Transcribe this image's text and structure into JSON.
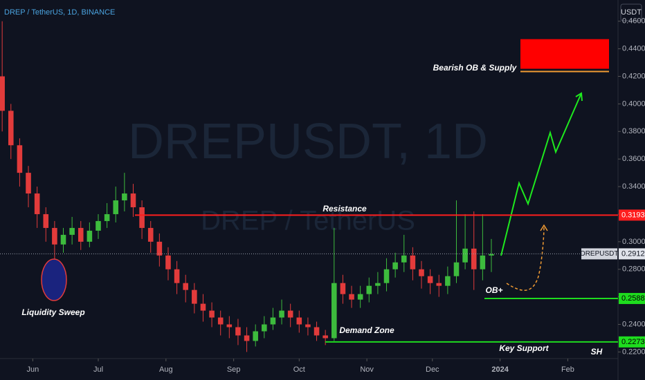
{
  "chart_data": {
    "type": "candlestick",
    "title": "DREP / TetherUS, 1D, BINANCE",
    "watermark": "DREPUSDT, 1D",
    "watermark_sub": "DREP  /  TetherUS",
    "currency": "USDT",
    "symbol": "DREPUSDT",
    "up_color": "#3dbb3d",
    "down_color": "#e23b3b",
    "x": [
      -14,
      -10,
      -6,
      -2,
      2,
      6,
      10,
      14,
      18,
      22,
      26,
      30,
      34,
      38,
      42,
      46,
      50,
      54,
      58,
      62,
      66,
      70,
      74,
      78,
      82,
      86,
      90,
      94,
      98,
      102,
      106,
      110,
      114,
      118,
      122,
      126,
      130,
      134,
      138,
      142,
      146,
      150,
      154,
      158,
      162,
      166,
      170,
      174,
      178,
      182,
      186,
      190,
      194,
      198,
      202,
      206,
      210
    ],
    "open": [
      0.42,
      0.395,
      0.37,
      0.35,
      0.335,
      0.32,
      0.31,
      0.298,
      0.305,
      0.31,
      0.3,
      0.308,
      0.315,
      0.32,
      0.33,
      0.335,
      0.325,
      0.31,
      0.3,
      0.29,
      0.28,
      0.27,
      0.265,
      0.255,
      0.25,
      0.245,
      0.24,
      0.238,
      0.232,
      0.228,
      0.235,
      0.24,
      0.245,
      0.25,
      0.245,
      0.24,
      0.238,
      0.232,
      0.23,
      0.27,
      0.262,
      0.258,
      0.262,
      0.268,
      0.27,
      0.28,
      0.285,
      0.29,
      0.28,
      0.275,
      0.27,
      0.268,
      0.275,
      0.285,
      0.295,
      0.28,
      0.29
    ],
    "high": [
      0.46,
      0.4,
      0.375,
      0.355,
      0.34,
      0.325,
      0.315,
      0.31,
      0.318,
      0.315,
      0.314,
      0.32,
      0.328,
      0.34,
      0.35,
      0.342,
      0.33,
      0.315,
      0.306,
      0.296,
      0.286,
      0.276,
      0.27,
      0.262,
      0.256,
      0.25,
      0.246,
      0.244,
      0.238,
      0.24,
      0.246,
      0.252,
      0.258,
      0.255,
      0.25,
      0.245,
      0.242,
      0.236,
      0.31,
      0.276,
      0.268,
      0.268,
      0.274,
      0.278,
      0.288,
      0.292,
      0.305,
      0.296,
      0.286,
      0.28,
      0.276,
      0.282,
      0.33,
      0.32,
      0.322,
      0.32,
      0.302
    ],
    "low": [
      0.38,
      0.36,
      0.34,
      0.325,
      0.31,
      0.3,
      0.285,
      0.292,
      0.298,
      0.294,
      0.296,
      0.302,
      0.31,
      0.314,
      0.322,
      0.318,
      0.302,
      0.292,
      0.282,
      0.272,
      0.262,
      0.256,
      0.248,
      0.242,
      0.238,
      0.232,
      0.23,
      0.225,
      0.22,
      0.224,
      0.23,
      0.236,
      0.24,
      0.238,
      0.234,
      0.232,
      0.228,
      0.225,
      0.228,
      0.255,
      0.252,
      0.252,
      0.256,
      0.262,
      0.264,
      0.274,
      0.278,
      0.272,
      0.266,
      0.262,
      0.26,
      0.262,
      0.27,
      0.28,
      0.265,
      0.272,
      0.278
    ],
    "close": [
      0.395,
      0.37,
      0.35,
      0.335,
      0.32,
      0.31,
      0.298,
      0.305,
      0.31,
      0.3,
      0.308,
      0.315,
      0.32,
      0.33,
      0.335,
      0.325,
      0.31,
      0.3,
      0.29,
      0.28,
      0.27,
      0.265,
      0.255,
      0.25,
      0.245,
      0.24,
      0.238,
      0.232,
      0.228,
      0.235,
      0.24,
      0.245,
      0.25,
      0.245,
      0.24,
      0.238,
      0.232,
      0.23,
      0.27,
      0.262,
      0.258,
      0.262,
      0.268,
      0.27,
      0.28,
      0.285,
      0.29,
      0.28,
      0.275,
      0.27,
      0.268,
      0.275,
      0.285,
      0.295,
      0.28,
      0.29,
      0.291
    ],
    "xlim": [
      -15,
      268
    ],
    "xticks": [
      {
        "value": 0,
        "label": "Jun"
      },
      {
        "value": 30,
        "label": "Jul"
      },
      {
        "value": 61,
        "label": "Aug"
      },
      {
        "value": 92,
        "label": "Sep"
      },
      {
        "value": 122,
        "label": "Oct"
      },
      {
        "value": 153,
        "label": "Nov"
      },
      {
        "value": 183,
        "label": "Dec"
      },
      {
        "value": 214,
        "label": "2024"
      },
      {
        "value": 245,
        "label": "Feb"
      }
    ],
    "ylim": [
      0.2152,
      0.4754
    ],
    "yticks": [
      {
        "value": 0.22,
        "label": "0.2200"
      },
      {
        "value": 0.24,
        "label": "0.2400"
      },
      {
        "value": 0.26,
        "label": "0.2600"
      },
      {
        "value": 0.28,
        "label": "0.2800"
      },
      {
        "value": 0.3,
        "label": "0.3000"
      },
      {
        "value": 0.32,
        "label": "0.3200"
      },
      {
        "value": 0.34,
        "label": "0.3400"
      },
      {
        "value": 0.36,
        "label": "0.3600"
      },
      {
        "value": 0.38,
        "label": "0.3800"
      },
      {
        "value": 0.4,
        "label": "0.4000"
      },
      {
        "value": 0.42,
        "label": "0.4200"
      },
      {
        "value": 0.44,
        "label": "0.4400"
      },
      {
        "value": 0.46,
        "label": "0.4600"
      }
    ],
    "levels": [
      {
        "price": 0.3193,
        "color": "#ff1e1e"
      },
      {
        "price": 0.2588,
        "color": "#1edc1e"
      },
      {
        "price": 0.2273,
        "color": "#1edc1e"
      }
    ],
    "last_price": 0.2912,
    "supply_zone": {
      "top": 0.447,
      "bottom": 0.4255,
      "base": 0.4235
    },
    "annotations": {
      "supply": "Bearish OB & Supply",
      "resistance": "Resistance",
      "sweep": "Liquidity Sweep",
      "demand": "Demand Zone",
      "support": "Key Support",
      "ob": "OB+",
      "sh": "SH"
    }
  }
}
